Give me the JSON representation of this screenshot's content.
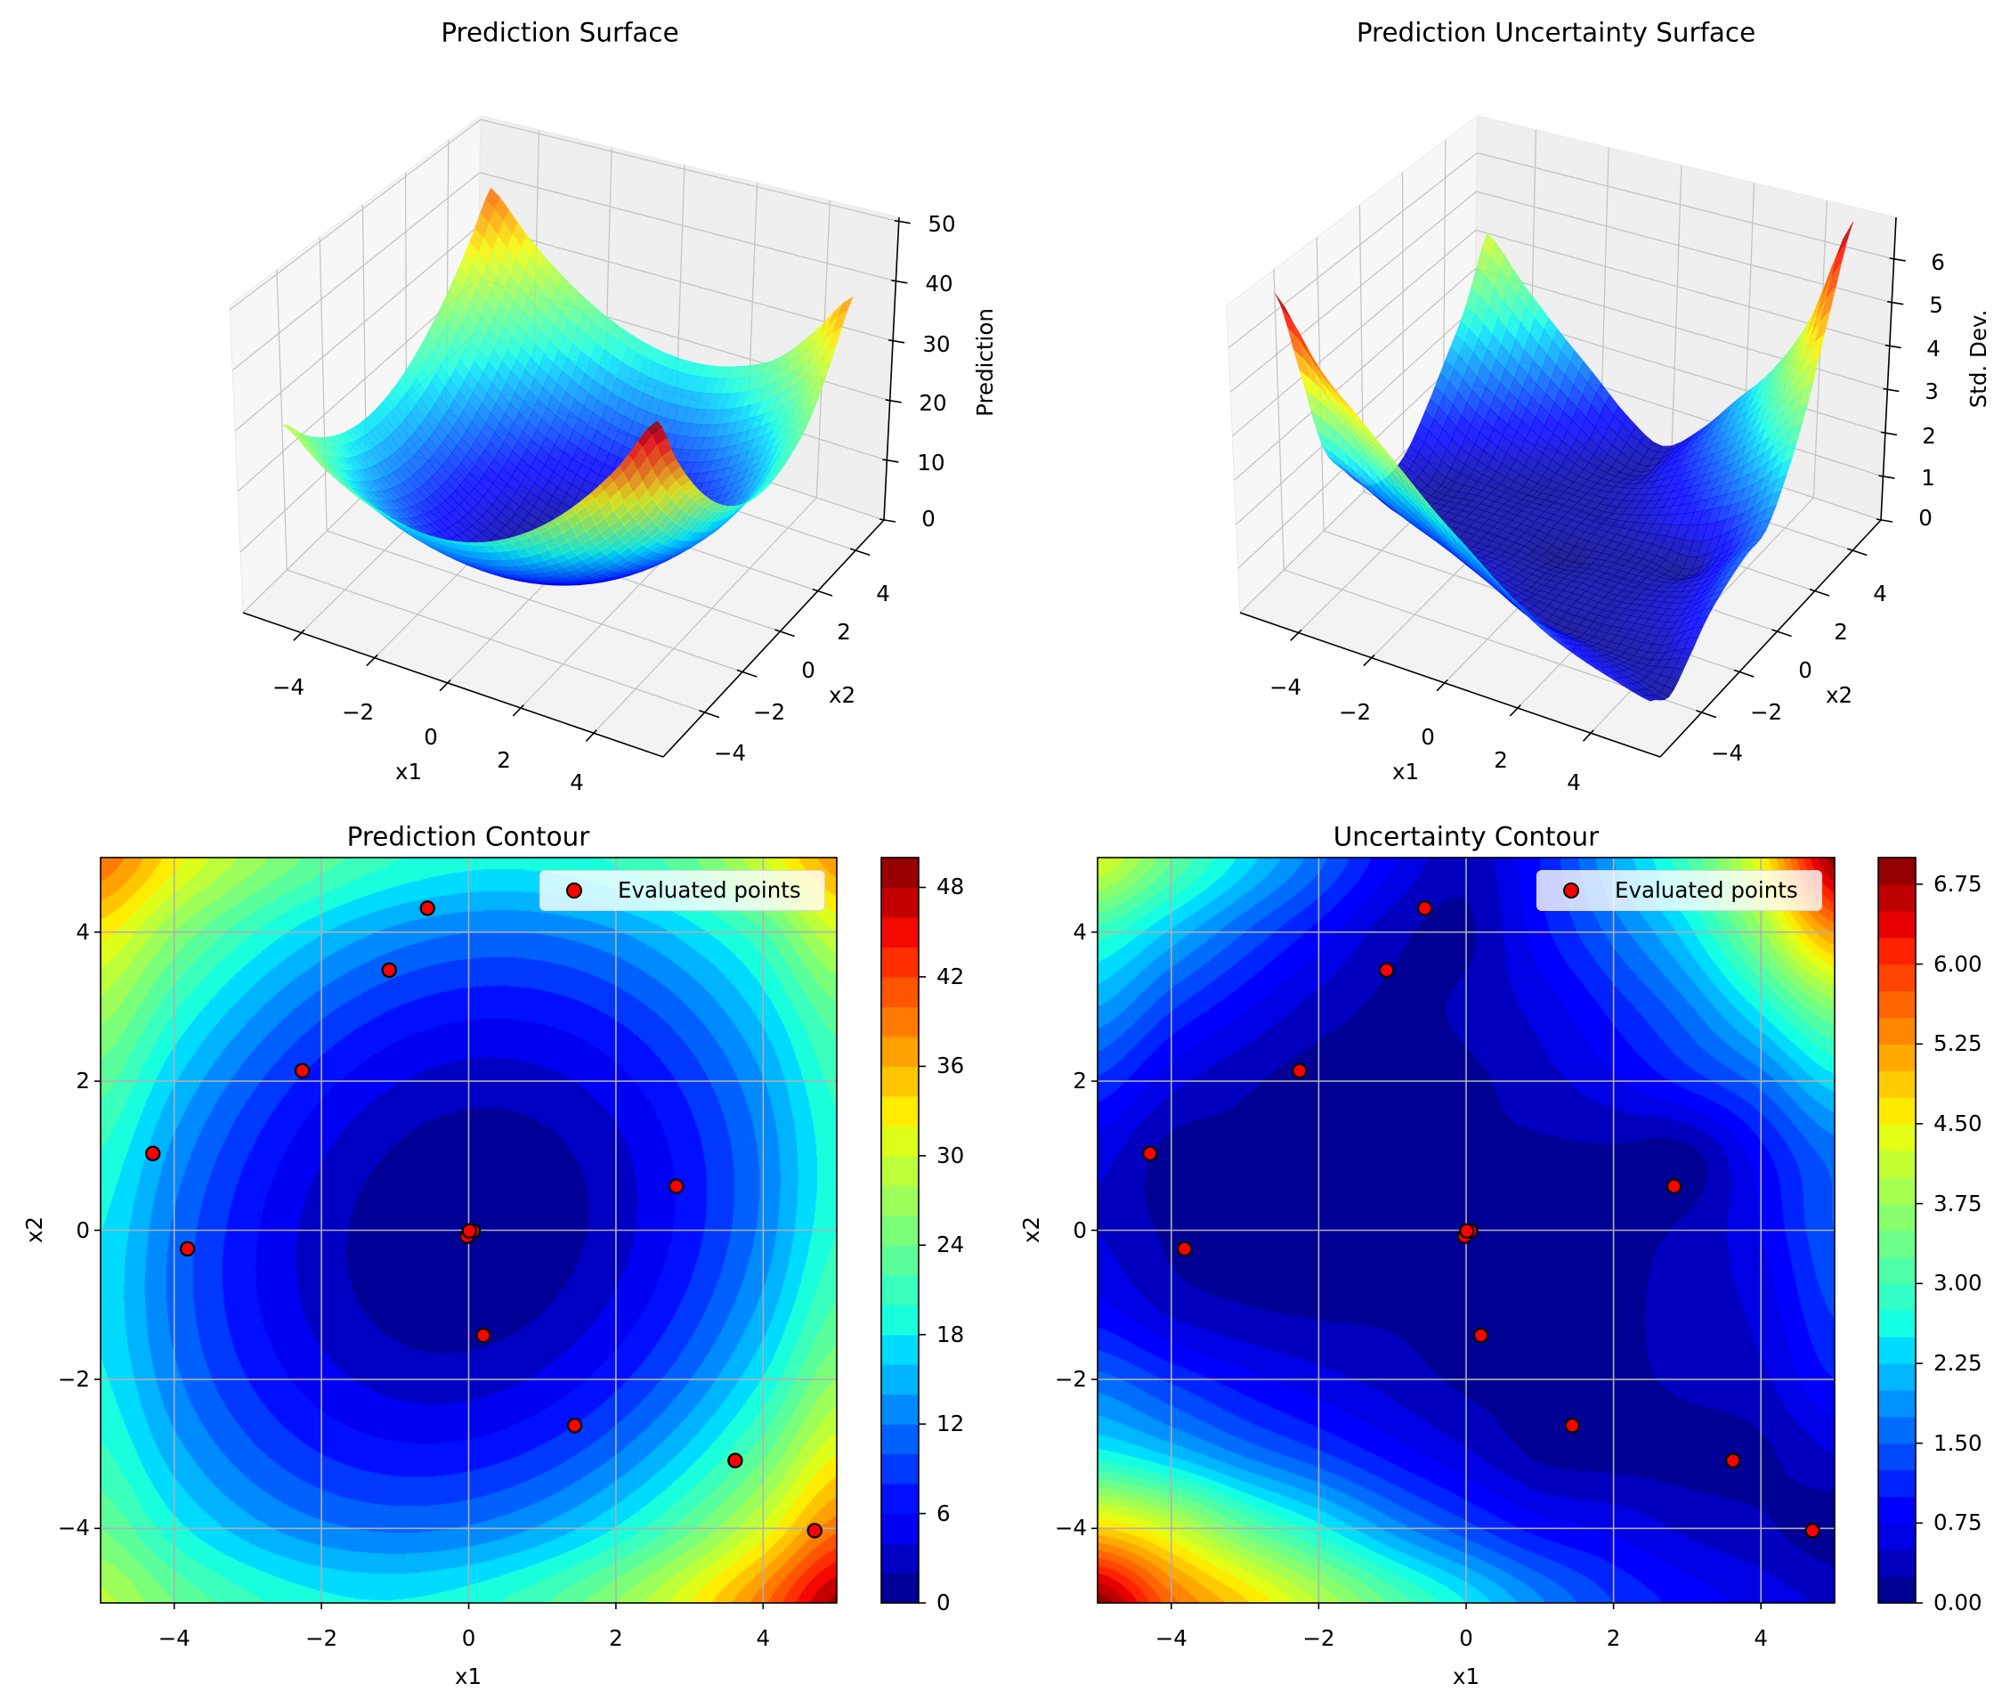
{
  "chart_data": [
    {
      "type": "surface",
      "title": "Prediction Surface",
      "xlabel": "x1",
      "ylabel": "x2",
      "zlabel": "Prediction",
      "colormap": "jet",
      "xticks": [
        "−4",
        "−2",
        "0",
        "2",
        "4"
      ],
      "yticks": [
        "−4",
        "−2",
        "0",
        "2",
        "4"
      ],
      "zticks": [
        "0",
        "10",
        "20",
        "30",
        "40",
        "50"
      ],
      "tick_values": [
        -4,
        -2,
        0,
        2,
        4
      ],
      "ztick_values": [
        0,
        10,
        20,
        30,
        40,
        50
      ],
      "zlim": [
        0,
        50.7
      ],
      "x1": [
        -5,
        -4,
        -3,
        -2,
        -1,
        0,
        1,
        2,
        3,
        4,
        5
      ],
      "x2": [
        -5,
        -4,
        -3,
        -2,
        -1,
        0,
        1,
        2,
        3,
        4,
        5
      ],
      "z": [
        [
          28.75,
          23.97,
          20.59,
          18.63,
          18.15,
          19.19,
          21.79,
          26.0,
          31.87,
          39.44,
          48.75
        ],
        [
          23.97,
          18.78,
          14.97,
          12.59,
          11.67,
          12.26,
          14.4,
          18.15,
          23.54,
          30.62,
          39.44
        ],
        [
          20.51,
          14.97,
          10.78,
          8.01,
          6.7,
          6.88,
          8.62,
          11.94,
          16.9,
          23.54,
          31.91
        ],
        [
          18.39,
          12.52,
          8.0,
          4.89,
          3.22,
          3.05,
          4.42,
          7.37,
          11.94,
          18.19,
          26.16
        ],
        [
          17.57,
          11.43,
          6.62,
          3.21,
          1.25,
          0.76,
          1.81,
          4.42,
          8.66,
          14.56,
          22.17
        ],
        [
          18.07,
          11.68,
          6.64,
          2.98,
          0.75,
          0.0,
          0.77,
          3.1,
          7.04,
          12.64,
          19.94
        ],
        [
          19.85,
          13.28,
          8.04,
          4.18,
          1.73,
          0.76,
          1.29,
          3.39,
          7.08,
          12.42,
          19.45
        ],
        [
          22.92,
          16.21,
          10.82,
          6.79,
          4.18,
          3.03,
          3.38,
          5.27,
          8.76,
          13.88,
          20.69
        ],
        [
          27.27,
          20.46,
          14.96,
          10.82,
          8.08,
          6.8,
          7.0,
          8.75,
          12.08,
          17.03,
          23.67
        ],
        [
          32.88,
          26.02,
          20.46,
          16.25,
          13.44,
          12.06,
          12.18,
          13.81,
          17.03,
          21.86,
          30.0
        ],
        [
          39.75,
          32.88,
          27.31,
          23.08,
          20.23,
          18.82,
          18.87,
          20.45,
          23.59,
          30.0,
          37.5
        ]
      ]
    },
    {
      "type": "surface",
      "title": "Prediction Uncertainty Surface",
      "xlabel": "x1",
      "ylabel": "x2",
      "zlabel": "Std. Dev.",
      "colormap": "jet",
      "xticks": [
        "−4",
        "−2",
        "0",
        "2",
        "4"
      ],
      "yticks": [
        "−4",
        "−2",
        "0",
        "2",
        "4"
      ],
      "zticks": [
        "0",
        "1",
        "2",
        "3",
        "4",
        "5",
        "6"
      ],
      "tick_values": [
        -4,
        -2,
        0,
        2,
        4
      ],
      "ztick_values": [
        0,
        1,
        2,
        3,
        4,
        5,
        6
      ],
      "zlim": [
        0,
        6.96
      ],
      "x1": [
        -5,
        -4,
        -3,
        -2,
        -1,
        0,
        1,
        2,
        3,
        4,
        5
      ],
      "x2": [
        -5,
        -4,
        -3,
        -2,
        -1,
        0,
        1,
        2,
        3,
        4,
        5
      ],
      "z": [
        [
          6.95,
          5.6,
          4.8,
          4.0,
          3.2,
          2.5,
          1.8,
          1.25,
          0.9,
          0.65,
          0.45
        ],
        [
          4.8,
          4.2,
          3.3,
          2.6,
          1.9,
          1.35,
          0.9,
          0.7,
          0.45,
          0.3,
          0.1
        ],
        [
          2.6,
          2.2,
          1.7,
          1.3,
          0.9,
          0.55,
          0.2,
          0.15,
          0.15,
          0.2,
          0.5
        ],
        [
          1.6,
          1.2,
          0.85,
          0.6,
          0.4,
          0.2,
          0.2,
          0.2,
          0.3,
          0.45,
          1.0
        ],
        [
          0.8,
          0.4,
          0.25,
          0.2,
          0.2,
          0.15,
          0.2,
          0.2,
          0.35,
          0.6,
          1.3
        ],
        [
          0.5,
          0.2,
          0.2,
          0.2,
          0.15,
          0.0,
          0.15,
          0.2,
          0.3,
          0.75,
          1.5
        ],
        [
          0.6,
          0.15,
          0.2,
          0.2,
          0.2,
          0.2,
          0.2,
          0.2,
          0.15,
          0.9,
          1.6
        ],
        [
          1.2,
          0.6,
          0.3,
          0.15,
          0.2,
          0.2,
          0.4,
          0.7,
          1.1,
          1.6,
          2.4
        ],
        [
          2.0,
          1.3,
          0.8,
          0.4,
          0.2,
          0.3,
          0.6,
          1.1,
          1.7,
          2.6,
          3.6
        ],
        [
          2.9,
          2.2,
          1.5,
          0.9,
          0.35,
          0.2,
          0.9,
          1.6,
          2.4,
          3.7,
          5.3
        ],
        [
          4.3,
          3.3,
          2.4,
          1.6,
          0.8,
          0.35,
          1.0,
          2.0,
          3.0,
          4.5,
          6.9
        ]
      ]
    },
    {
      "type": "contour",
      "title": "Prediction Contour",
      "xlabel": "x1",
      "ylabel": "x2",
      "xlim": [
        -5,
        5
      ],
      "ylim": [
        -5,
        5
      ],
      "xticks": [
        "−4",
        "−2",
        "0",
        "2",
        "4"
      ],
      "yticks": [
        "−4",
        "−2",
        "0",
        "2",
        "4"
      ],
      "tick_values": [
        -4,
        -2,
        0,
        2,
        4
      ],
      "grid": true,
      "z_source": 0,
      "levels": {
        "min": 0,
        "max": 50,
        "step": 2
      },
      "colorbar": {
        "ticks": [
          "0",
          "6",
          "12",
          "18",
          "24",
          "30",
          "36",
          "42",
          "48"
        ],
        "tick_values": [
          0,
          6,
          12,
          18,
          24,
          30,
          36,
          42,
          48
        ]
      },
      "legend": {
        "label": "Evaluated points",
        "position": "upper right"
      },
      "points": {
        "x1": [
          -0.56,
          -1.08,
          -2.26,
          -4.29,
          -3.82,
          0.06,
          -0.02,
          0.01,
          0.2,
          1.44,
          2.82,
          3.62,
          4.7
        ],
        "x2": [
          4.32,
          3.49,
          2.14,
          1.03,
          -0.25,
          -0.01,
          -0.08,
          -0.01,
          -1.41,
          -2.62,
          0.59,
          -3.09,
          -4.03
        ],
        "color": "#ff0000",
        "edgecolor": "#000000"
      }
    },
    {
      "type": "contour",
      "title": "Uncertainty Contour",
      "xlabel": "x1",
      "ylabel": "x2",
      "xlim": [
        -5,
        5
      ],
      "ylim": [
        -5,
        5
      ],
      "xticks": [
        "−4",
        "−2",
        "0",
        "2",
        "4"
      ],
      "yticks": [
        "−4",
        "−2",
        "0",
        "2",
        "4"
      ],
      "tick_values": [
        -4,
        -2,
        0,
        2,
        4
      ],
      "grid": true,
      "z_source": 1,
      "levels": {
        "min": 0,
        "max": 7,
        "step": 0.25
      },
      "colorbar": {
        "ticks": [
          "0.00",
          "0.75",
          "1.50",
          "2.25",
          "3.00",
          "3.75",
          "4.50",
          "5.25",
          "6.00",
          "6.75"
        ],
        "tick_values": [
          0,
          0.75,
          1.5,
          2.25,
          3.0,
          3.75,
          4.5,
          5.25,
          6.0,
          6.75
        ]
      },
      "legend": {
        "label": "Evaluated points",
        "position": "upper right"
      },
      "points": {
        "x1": [
          -0.56,
          -1.08,
          -2.26,
          -4.29,
          -3.82,
          0.06,
          -0.02,
          0.01,
          0.2,
          1.44,
          2.82,
          3.62,
          4.7
        ],
        "x2": [
          4.32,
          3.49,
          2.14,
          1.03,
          -0.25,
          -0.01,
          -0.08,
          -0.01,
          -1.41,
          -2.62,
          0.59,
          -3.09,
          -4.03
        ],
        "color": "#ff0000",
        "edgecolor": "#000000"
      }
    }
  ]
}
